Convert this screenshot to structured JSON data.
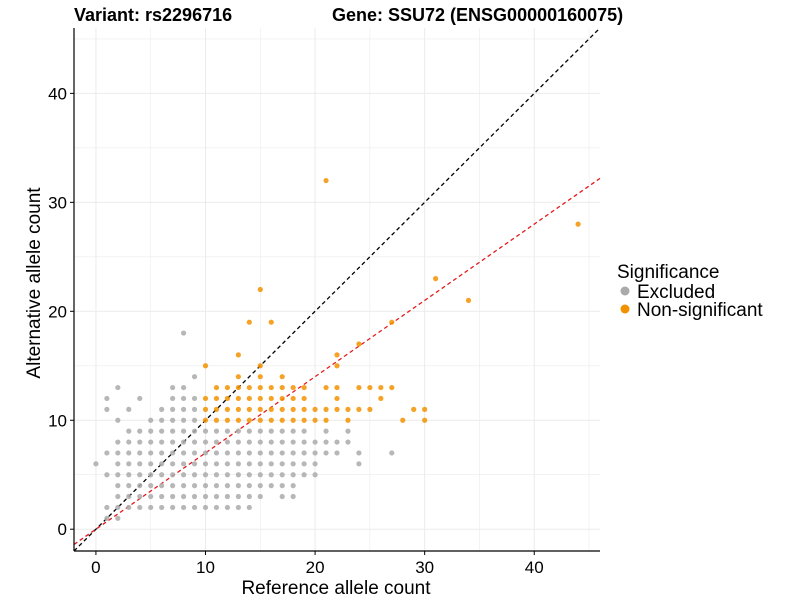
{
  "chart_data": {
    "type": "scatter",
    "title_left": "Variant: rs2296716",
    "title_right": "Gene: SSU72 (ENSG00000160075)",
    "xlabel": "Reference allele count",
    "ylabel": "Alternative allele count",
    "xlim": [
      -2,
      46
    ],
    "ylim": [
      -2,
      46
    ],
    "xticks": [
      0,
      10,
      20,
      30,
      40
    ],
    "yticks": [
      0,
      10,
      20,
      30,
      40
    ],
    "grid": true,
    "legend": {
      "title": "Significance",
      "position": "right",
      "entries": [
        {
          "label": "Excluded",
          "color": "#aaaaaa"
        },
        {
          "label": "Non-significant",
          "color": "#f39200"
        }
      ]
    },
    "reference_lines": [
      {
        "name": "identity",
        "slope": 1,
        "intercept": 0,
        "color": "#000000",
        "dash": true
      },
      {
        "name": "fit",
        "slope": 0.7,
        "intercept": 0,
        "color": "#e41a1c",
        "dash": true
      }
    ],
    "series": [
      {
        "name": "Excluded",
        "color": "#aaaaaa",
        "points": [
          [
            0,
            6
          ],
          [
            1,
            5
          ],
          [
            1,
            7
          ],
          [
            1,
            11
          ],
          [
            1,
            12
          ],
          [
            1,
            2
          ],
          [
            1,
            1
          ],
          [
            2,
            13
          ],
          [
            2,
            10
          ],
          [
            2,
            8
          ],
          [
            2,
            7
          ],
          [
            2,
            6
          ],
          [
            2,
            5
          ],
          [
            2,
            4
          ],
          [
            2,
            3
          ],
          [
            2,
            2
          ],
          [
            2,
            1
          ],
          [
            3,
            9
          ],
          [
            3,
            8
          ],
          [
            3,
            7
          ],
          [
            3,
            6
          ],
          [
            3,
            5
          ],
          [
            3,
            4
          ],
          [
            3,
            3
          ],
          [
            3,
            2
          ],
          [
            3,
            11
          ],
          [
            4,
            12
          ],
          [
            4,
            9
          ],
          [
            4,
            8
          ],
          [
            4,
            7
          ],
          [
            4,
            6
          ],
          [
            4,
            5
          ],
          [
            4,
            4
          ],
          [
            4,
            3
          ],
          [
            4,
            2
          ],
          [
            5,
            9
          ],
          [
            5,
            8
          ],
          [
            5,
            7
          ],
          [
            5,
            6
          ],
          [
            5,
            5
          ],
          [
            5,
            4
          ],
          [
            5,
            3
          ],
          [
            5,
            2
          ],
          [
            5,
            10
          ],
          [
            6,
            11
          ],
          [
            6,
            10
          ],
          [
            6,
            9
          ],
          [
            6,
            8
          ],
          [
            6,
            7
          ],
          [
            6,
            6
          ],
          [
            6,
            5
          ],
          [
            6,
            4
          ],
          [
            6,
            3
          ],
          [
            6,
            2
          ],
          [
            7,
            13
          ],
          [
            7,
            12
          ],
          [
            7,
            11
          ],
          [
            7,
            10
          ],
          [
            7,
            9
          ],
          [
            7,
            8
          ],
          [
            7,
            7
          ],
          [
            7,
            6
          ],
          [
            7,
            5
          ],
          [
            7,
            4
          ],
          [
            7,
            3
          ],
          [
            7,
            2
          ],
          [
            8,
            18
          ],
          [
            8,
            13
          ],
          [
            8,
            12
          ],
          [
            8,
            11
          ],
          [
            8,
            10
          ],
          [
            8,
            9
          ],
          [
            8,
            8
          ],
          [
            8,
            7
          ],
          [
            8,
            6
          ],
          [
            8,
            5
          ],
          [
            8,
            4
          ],
          [
            8,
            3
          ],
          [
            8,
            2
          ],
          [
            9,
            14
          ],
          [
            9,
            12
          ],
          [
            9,
            11
          ],
          [
            9,
            10
          ],
          [
            9,
            9
          ],
          [
            9,
            8
          ],
          [
            9,
            7
          ],
          [
            9,
            6
          ],
          [
            9,
            5
          ],
          [
            9,
            4
          ],
          [
            9,
            3
          ],
          [
            9,
            2
          ],
          [
            10,
            9
          ],
          [
            10,
            8
          ],
          [
            10,
            7
          ],
          [
            10,
            6
          ],
          [
            10,
            5
          ],
          [
            10,
            4
          ],
          [
            10,
            3
          ],
          [
            10,
            2
          ],
          [
            11,
            9
          ],
          [
            11,
            8
          ],
          [
            11,
            7
          ],
          [
            11,
            6
          ],
          [
            11,
            5
          ],
          [
            11,
            4
          ],
          [
            11,
            3
          ],
          [
            11,
            2
          ],
          [
            12,
            9
          ],
          [
            12,
            8
          ],
          [
            12,
            7
          ],
          [
            12,
            6
          ],
          [
            12,
            5
          ],
          [
            12,
            4
          ],
          [
            12,
            3
          ],
          [
            12,
            2
          ],
          [
            13,
            9
          ],
          [
            13,
            8
          ],
          [
            13,
            7
          ],
          [
            13,
            6
          ],
          [
            13,
            5
          ],
          [
            13,
            4
          ],
          [
            13,
            3
          ],
          [
            13,
            2
          ],
          [
            14,
            9
          ],
          [
            14,
            8
          ],
          [
            14,
            7
          ],
          [
            14,
            6
          ],
          [
            14,
            5
          ],
          [
            14,
            4
          ],
          [
            14,
            3
          ],
          [
            14,
            2
          ],
          [
            15,
            9
          ],
          [
            15,
            8
          ],
          [
            15,
            7
          ],
          [
            15,
            6
          ],
          [
            15,
            5
          ],
          [
            15,
            4
          ],
          [
            15,
            3
          ],
          [
            16,
            9
          ],
          [
            16,
            8
          ],
          [
            16,
            7
          ],
          [
            16,
            6
          ],
          [
            16,
            5
          ],
          [
            16,
            4
          ],
          [
            17,
            9
          ],
          [
            17,
            8
          ],
          [
            17,
            7
          ],
          [
            17,
            6
          ],
          [
            17,
            5
          ],
          [
            17,
            4
          ],
          [
            17,
            3
          ],
          [
            18,
            9
          ],
          [
            18,
            8
          ],
          [
            18,
            7
          ],
          [
            18,
            6
          ],
          [
            18,
            5
          ],
          [
            18,
            4
          ],
          [
            18,
            3
          ],
          [
            19,
            9
          ],
          [
            19,
            8
          ],
          [
            19,
            7
          ],
          [
            19,
            6
          ],
          [
            19,
            5
          ],
          [
            20,
            8
          ],
          [
            20,
            7
          ],
          [
            20,
            6
          ],
          [
            20,
            5
          ],
          [
            21,
            9
          ],
          [
            21,
            8
          ],
          [
            21,
            7
          ],
          [
            22,
            8
          ],
          [
            22,
            7
          ],
          [
            23,
            9
          ],
          [
            23,
            8
          ],
          [
            24,
            6
          ],
          [
            24,
            7
          ],
          [
            27,
            7
          ]
        ]
      },
      {
        "name": "Non-significant",
        "color": "#f39200",
        "points": [
          [
            10,
            15
          ],
          [
            10,
            12
          ],
          [
            10,
            11
          ],
          [
            10,
            10
          ],
          [
            11,
            13
          ],
          [
            11,
            12
          ],
          [
            11,
            11
          ],
          [
            11,
            10
          ],
          [
            12,
            13
          ],
          [
            12,
            12
          ],
          [
            12,
            11
          ],
          [
            12,
            10
          ],
          [
            13,
            16
          ],
          [
            13,
            14
          ],
          [
            13,
            13
          ],
          [
            13,
            12
          ],
          [
            13,
            11
          ],
          [
            13,
            10
          ],
          [
            14,
            19
          ],
          [
            14,
            13
          ],
          [
            14,
            12
          ],
          [
            14,
            11
          ],
          [
            14,
            10
          ],
          [
            15,
            22
          ],
          [
            15,
            15
          ],
          [
            15,
            14
          ],
          [
            15,
            13
          ],
          [
            15,
            12
          ],
          [
            15,
            11
          ],
          [
            15,
            10
          ],
          [
            16,
            19
          ],
          [
            16,
            13
          ],
          [
            16,
            12
          ],
          [
            16,
            11
          ],
          [
            16,
            10
          ],
          [
            17,
            14
          ],
          [
            17,
            13
          ],
          [
            17,
            12
          ],
          [
            17,
            11
          ],
          [
            17,
            10
          ],
          [
            18,
            13
          ],
          [
            18,
            12
          ],
          [
            18,
            11
          ],
          [
            18,
            10
          ],
          [
            19,
            13
          ],
          [
            19,
            12
          ],
          [
            19,
            11
          ],
          [
            19,
            10
          ],
          [
            20,
            11
          ],
          [
            20,
            10
          ],
          [
            21,
            32
          ],
          [
            21,
            13
          ],
          [
            21,
            11
          ],
          [
            21,
            10
          ],
          [
            22,
            16
          ],
          [
            22,
            15
          ],
          [
            22,
            13
          ],
          [
            22,
            12
          ],
          [
            22,
            11
          ],
          [
            23,
            11
          ],
          [
            23,
            10
          ],
          [
            24,
            17
          ],
          [
            24,
            13
          ],
          [
            24,
            11
          ],
          [
            25,
            13
          ],
          [
            25,
            11
          ],
          [
            26,
            13
          ],
          [
            26,
            12
          ],
          [
            27,
            19
          ],
          [
            27,
            13
          ],
          [
            28,
            10
          ],
          [
            29,
            11
          ],
          [
            30,
            11
          ],
          [
            30,
            10
          ],
          [
            31,
            23
          ],
          [
            34,
            21
          ],
          [
            44,
            28
          ]
        ]
      }
    ]
  }
}
